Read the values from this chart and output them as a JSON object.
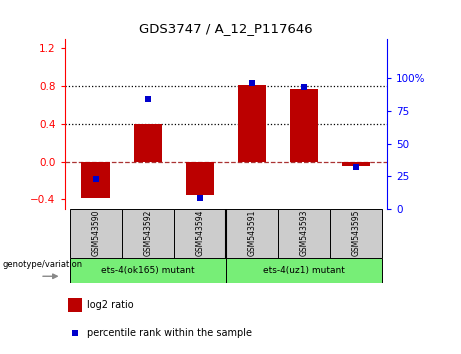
{
  "title": "GDS3747 / A_12_P117646",
  "categories": [
    "GSM543590",
    "GSM543592",
    "GSM543594",
    "GSM543591",
    "GSM543593",
    "GSM543595"
  ],
  "log2_ratio": [
    -0.38,
    0.4,
    -0.35,
    0.81,
    0.77,
    -0.05
  ],
  "percentile_rank": [
    23,
    84,
    8,
    96,
    93,
    32
  ],
  "bar_color": "#bb0000",
  "dot_color": "#0000cc",
  "ylim_left": [
    -0.5,
    1.3
  ],
  "ylim_right": [
    0,
    130
  ],
  "yticks_left": [
    -0.4,
    0.0,
    0.4,
    0.8,
    1.2
  ],
  "yticks_right": [
    0,
    25,
    50,
    75,
    100
  ],
  "ytick_labels_right": [
    "0",
    "25",
    "50",
    "75",
    "100%"
  ],
  "hlines_dotted": [
    0.4,
    0.8
  ],
  "zero_line_value": 0.0,
  "zero_line_color": "#aa3333",
  "hline_color": "black",
  "group1_label": "ets-4(ok165) mutant",
  "group2_label": "ets-4(uz1) mutant",
  "group1_indices": [
    0,
    1,
    2
  ],
  "group2_indices": [
    3,
    4,
    5
  ],
  "group_bg_color": "#77ee77",
  "sample_bg_color": "#cccccc",
  "genotype_label": "genotype/variation",
  "legend_bar_label": "log2 ratio",
  "legend_dot_label": "percentile rank within the sample",
  "bar_width": 0.55
}
